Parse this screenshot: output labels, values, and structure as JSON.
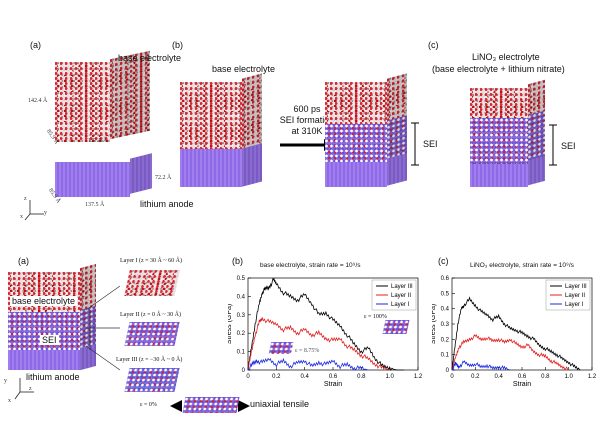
{
  "top": {
    "panel_a": {
      "label": "(a)",
      "electrolyte_label": "base electrolyte",
      "dim_height": "142.4 Å",
      "dim_depth": "85.9 Å",
      "dim_width": "137.5 Å",
      "anode_height": "72.2 Å",
      "anode_depth": "85.9 Å",
      "anode_width": "137.5 Å",
      "anode_label": "lithium anode",
      "axis_x": "x",
      "axis_y": "y",
      "axis_z": "z"
    },
    "panel_b": {
      "label": "(b)",
      "electrolyte_label": "base electrolyte",
      "arrow_line1": "600 ps",
      "arrow_line2": "SEI formation",
      "arrow_line3": "at 310K",
      "sei_label": "SEI"
    },
    "panel_c": {
      "label": "(c)",
      "title_line1": "LiNO₃ electrolyte",
      "title_line2": "(base electrolyte + lithium nitrate)",
      "sei_label": "SEI"
    }
  },
  "bottom": {
    "panel_a": {
      "label": "(a)",
      "electrolyte_label": "base electrolyte",
      "sei_label": "SEI",
      "anode_label": "lithium anode",
      "layer1": "Layer I (z = 30 Å ~ 60 Å)",
      "layer2": "Layer II (z = 0 Å ~ 30 Å)",
      "layer3": "Layer III (z = −30 Å ~ 0 Å)",
      "strain0": "ε = 0%",
      "tensile": "uniaxial tensile",
      "axis_x": "x",
      "axis_y": "y",
      "axis_z": "z"
    }
  },
  "chart_data": [
    {
      "type": "line",
      "label": "(b)",
      "title": "base electrolyte, strain rate = 10⁹/s",
      "xlabel": "Strain",
      "ylabel": "Stress (GPa)",
      "xlim": [
        0,
        1.2
      ],
      "ylim": [
        0,
        0.5
      ],
      "xticks": [
        "0",
        "0.2",
        "0.4",
        "0.6",
        "0.8",
        "1.0",
        "1.2"
      ],
      "yticks": [
        "0",
        "0.1",
        "0.2",
        "0.3",
        "0.4",
        "0.5"
      ],
      "legend_position": "top-right",
      "annotations": [
        "ε = 100%",
        "ε = 8.75%"
      ],
      "series": [
        {
          "name": "Layer III",
          "color": "#000000",
          "x": [
            0,
            0.02,
            0.05,
            0.08,
            0.1,
            0.12,
            0.15,
            0.18,
            0.2,
            0.25,
            0.3,
            0.35,
            0.4,
            0.45,
            0.5,
            0.55,
            0.6,
            0.65,
            0.7,
            0.75,
            0.8,
            0.85,
            0.9,
            0.95,
            1.0,
            1.05,
            1.1
          ],
          "y": [
            0,
            0.1,
            0.25,
            0.36,
            0.42,
            0.44,
            0.45,
            0.49,
            0.47,
            0.42,
            0.4,
            0.38,
            0.41,
            0.36,
            0.3,
            0.31,
            0.27,
            0.24,
            0.19,
            0.14,
            0.1,
            0.12,
            0.06,
            0.02,
            0.01,
            0.0,
            0.0
          ]
        },
        {
          "name": "Layer II",
          "color": "#e02020",
          "x": [
            0,
            0.02,
            0.05,
            0.08,
            0.1,
            0.15,
            0.2,
            0.25,
            0.3,
            0.35,
            0.4,
            0.45,
            0.5,
            0.55,
            0.6,
            0.65,
            0.7,
            0.75,
            0.8,
            0.85,
            0.9,
            0.95,
            1.0
          ],
          "y": [
            0,
            0.08,
            0.19,
            0.26,
            0.28,
            0.26,
            0.25,
            0.22,
            0.23,
            0.2,
            0.22,
            0.19,
            0.2,
            0.17,
            0.16,
            0.17,
            0.13,
            0.11,
            0.08,
            0.06,
            0.03,
            0.01,
            0.0
          ]
        },
        {
          "name": "Layer I",
          "color": "#1a2ae0",
          "x": [
            0,
            0.03,
            0.06,
            0.1,
            0.15,
            0.2,
            0.25,
            0.3,
            0.35,
            0.4,
            0.45,
            0.5,
            0.55,
            0.6,
            0.65,
            0.7,
            0.75,
            0.8,
            0.85
          ],
          "y": [
            0,
            0.03,
            0.05,
            0.04,
            0.06,
            0.03,
            0.05,
            0.02,
            0.04,
            0.05,
            0.02,
            0.04,
            0.03,
            0.05,
            0.02,
            0.03,
            0.01,
            0.01,
            0.0
          ]
        }
      ]
    },
    {
      "type": "line",
      "label": "(c)",
      "title": "LiNO₃ electrolyte, strain rate = 10⁹/s",
      "xlabel": "Strain",
      "ylabel": "Stress (GPa)",
      "xlim": [
        0,
        1.2
      ],
      "ylim": [
        0,
        0.6
      ],
      "xticks": [
        "0",
        "0.2",
        "0.4",
        "0.6",
        "0.8",
        "1.0",
        "1.2"
      ],
      "yticks": [
        "0",
        "0.1",
        "0.2",
        "0.3",
        "0.4",
        "0.5",
        "0.6"
      ],
      "legend_position": "top-right",
      "series": [
        {
          "name": "Layer III",
          "color": "#000000",
          "x": [
            0,
            0.02,
            0.05,
            0.08,
            0.1,
            0.15,
            0.2,
            0.25,
            0.3,
            0.35,
            0.4,
            0.45,
            0.5,
            0.55,
            0.6,
            0.65,
            0.7,
            0.75,
            0.8,
            0.85,
            0.9,
            0.95,
            1.0,
            1.05,
            1.1
          ],
          "y": [
            0,
            0.12,
            0.3,
            0.4,
            0.42,
            0.46,
            0.42,
            0.38,
            0.36,
            0.33,
            0.35,
            0.3,
            0.27,
            0.26,
            0.24,
            0.22,
            0.2,
            0.16,
            0.14,
            0.12,
            0.1,
            0.07,
            0.05,
            0.02,
            0.0
          ]
        },
        {
          "name": "Layer II",
          "color": "#e02020",
          "x": [
            0,
            0.03,
            0.06,
            0.1,
            0.15,
            0.2,
            0.25,
            0.3,
            0.35,
            0.4,
            0.45,
            0.5,
            0.55,
            0.6,
            0.65,
            0.7,
            0.75,
            0.8,
            0.85,
            0.9,
            0.95,
            1.0
          ],
          "y": [
            0,
            0.08,
            0.15,
            0.18,
            0.2,
            0.22,
            0.2,
            0.21,
            0.19,
            0.2,
            0.18,
            0.2,
            0.17,
            0.15,
            0.16,
            0.12,
            0.1,
            0.09,
            0.06,
            0.04,
            0.02,
            0.0
          ]
        },
        {
          "name": "Layer I",
          "color": "#1a2ae0",
          "x": [
            0,
            0.03,
            0.06,
            0.1,
            0.15,
            0.2,
            0.25,
            0.3,
            0.35,
            0.4,
            0.45,
            0.5
          ],
          "y": [
            0,
            0.04,
            0.02,
            0.05,
            0.03,
            0.04,
            0.02,
            0.03,
            0.01,
            0.02,
            0.01,
            0.0
          ]
        }
      ]
    }
  ]
}
